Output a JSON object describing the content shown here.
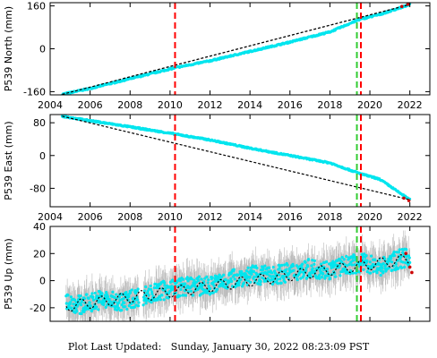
{
  "chart_data": [
    {
      "type": "scatter",
      "ylabel": "P539 North (mm)",
      "xlim": [
        2004,
        2023
      ],
      "ylim": [
        -172,
        172
      ],
      "yticks": [
        -160,
        0,
        160
      ],
      "xticks": [
        2004,
        2006,
        2008,
        2010,
        2012,
        2014,
        2016,
        2018,
        2020,
        2022
      ],
      "xtick_labels_shown": true,
      "series": [
        {
          "x": [
            2004.6,
            2006.0,
            2008.0,
            2010.3,
            2012.0,
            2014.0,
            2016.0,
            2018.0,
            2019.5,
            2020.5,
            2022.0
          ],
          "y": [
            -170,
            -148,
            -112,
            -70,
            -45,
            -10,
            25,
            63,
            110,
            128,
            165
          ],
          "color": "#00e5ee",
          "error_color": "#aaaaaa"
        }
      ],
      "trend": {
        "x": [
          2004.6,
          2022.0
        ],
        "y": [
          -170,
          165
        ],
        "color": "#000000"
      },
      "red_points": [
        {
          "x": 2021.6,
          "y": 158
        },
        {
          "x": 2021.9,
          "y": 166
        }
      ],
      "vlines": [
        {
          "x": 2010.25,
          "color": "#ff0000",
          "style": "dashed"
        },
        {
          "x": 2019.35,
          "color": "#33cc33",
          "style": "dashed"
        },
        {
          "x": 2019.55,
          "color": "#ff0000",
          "style": "dashed"
        }
      ]
    },
    {
      "type": "scatter",
      "ylabel": "P539 East (mm)",
      "xlim": [
        2004,
        2023
      ],
      "ylim": [
        -125,
        100
      ],
      "yticks": [
        -80,
        0,
        80
      ],
      "xticks": [
        2004,
        2006,
        2008,
        2010,
        2012,
        2014,
        2016,
        2018,
        2020,
        2022
      ],
      "xtick_labels_shown": true,
      "series": [
        {
          "x": [
            2004.6,
            2006.0,
            2008.0,
            2010.3,
            2012.0,
            2014.0,
            2016.0,
            2018.0,
            2019.5,
            2020.5,
            2022.0
          ],
          "y": [
            96,
            85,
            70,
            52,
            38,
            18,
            0,
            -18,
            -44,
            -58,
            -108
          ],
          "color": "#00e5ee",
          "error_color": "#aaaaaa"
        }
      ],
      "trend": {
        "x": [
          2004.6,
          2022.0
        ],
        "y": [
          96,
          -108
        ],
        "color": "#000000"
      },
      "red_points": [
        {
          "x": 2021.7,
          "y": -104
        },
        {
          "x": 2021.95,
          "y": -110
        }
      ],
      "vlines": [
        {
          "x": 2010.25,
          "color": "#ff0000",
          "style": "dashed"
        },
        {
          "x": 2019.35,
          "color": "#33cc33",
          "style": "dashed"
        },
        {
          "x": 2019.55,
          "color": "#ff0000",
          "style": "dashed"
        }
      ]
    },
    {
      "type": "scatter",
      "ylabel": "P539 Up (mm)",
      "xlim": [
        2004,
        2023
      ],
      "ylim": [
        -30,
        40
      ],
      "yticks": [
        -20,
        0,
        20,
        40
      ],
      "xticks": [
        2004,
        2006,
        2008,
        2010,
        2012,
        2014,
        2016,
        2018,
        2020,
        2022
      ],
      "xtick_labels_shown": false,
      "series": [
        {
          "x": [
            2004.8,
            2005.5,
            2006.5,
            2007.5,
            2008.4,
            2009.0,
            2010.0,
            2011.0,
            2012.0,
            2013.0,
            2014.0,
            2015.0,
            2016.0,
            2017.0,
            2018.0,
            2019.0,
            2019.8,
            2020.5,
            2021.0,
            2021.5,
            2022.0
          ],
          "y": [
            -15,
            -18,
            -14,
            -16,
            -12,
            -10,
            -6,
            -4,
            -4,
            1,
            4,
            4,
            6,
            9,
            8,
            12,
            13,
            10,
            13,
            16,
            17
          ],
          "color": "#00e5ee",
          "error_color": "#aaaaaa"
        }
      ],
      "trend": {
        "x": [
          2004.8,
          2022.0
        ],
        "y": [
          -19,
          16
        ],
        "color": "#000000"
      },
      "red_points": [
        {
          "x": 2021.8,
          "y": 20
        },
        {
          "x": 2022.0,
          "y": 10
        },
        {
          "x": 2022.1,
          "y": 6
        }
      ],
      "vlines": [
        {
          "x": 2010.25,
          "color": "#ff0000",
          "style": "dashed"
        },
        {
          "x": 2019.35,
          "color": "#33cc33",
          "style": "dashed"
        },
        {
          "x": 2019.55,
          "color": "#ff0000",
          "style": "dashed"
        }
      ]
    }
  ],
  "footer": {
    "label": "Plot Last Updated:",
    "date": "Sunday, January 30, 2022 08:23:09 PST"
  }
}
